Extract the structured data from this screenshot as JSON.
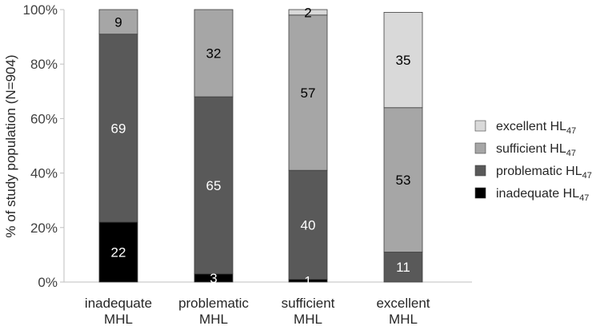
{
  "chart_data": {
    "type": "bar",
    "stacked": true,
    "categories": [
      [
        "inadequate",
        "MHL"
      ],
      [
        "problematic",
        "MHL"
      ],
      [
        "sufficient",
        "MHL"
      ],
      [
        "excellent",
        "MHL"
      ]
    ],
    "ylabel": "% of study population (N=904)",
    "ylim": [
      0,
      100
    ],
    "yticks": [
      0,
      20,
      40,
      60,
      80,
      100
    ],
    "ytick_suffix": "%",
    "grid": false,
    "legend_position": "right",
    "series": [
      {
        "name": "inadequate HL",
        "name_sub": "47",
        "color": "#000000",
        "label_color": "#ffffff",
        "values": [
          22,
          3,
          1,
          0
        ]
      },
      {
        "name": "problematic HL",
        "name_sub": "47",
        "color": "#595959",
        "label_color": "#ffffff",
        "values": [
          69,
          65,
          40,
          11
        ]
      },
      {
        "name": "sufficient HL",
        "name_sub": "47",
        "color": "#a6a6a6",
        "label_color": "#000000",
        "values": [
          9,
          32,
          57,
          53
        ]
      },
      {
        "name": "excellent HL",
        "name_sub": "47",
        "color": "#d9d9d9",
        "label_color": "#000000",
        "values": [
          0,
          0,
          2,
          35
        ]
      }
    ]
  }
}
